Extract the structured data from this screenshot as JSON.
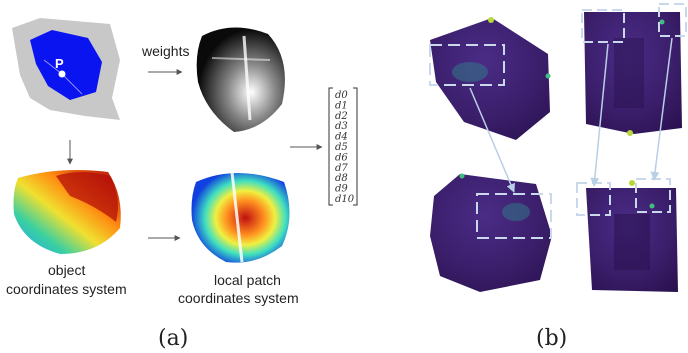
{
  "panel_a": {
    "point_label": "P",
    "weights_label": "weights",
    "object_label_line1": "object",
    "object_label_line2": "coordinates system",
    "local_label_line1": "local patch",
    "local_label_line2": "coordinates system",
    "descriptor": [
      "d0",
      "d1",
      "d2",
      "d3",
      "d4",
      "d5",
      "d6",
      "d7",
      "d8",
      "d9",
      "d10"
    ],
    "caption": "(a)"
  },
  "panel_b": {
    "caption": "(b)"
  },
  "colors": {
    "patch_blue": "#0a14f0",
    "surface_gray": "#c8c8c8",
    "cube_purple": "#3b1f6e",
    "highlight_box": "#c9d8ea",
    "arrow_gray": "#555555"
  }
}
